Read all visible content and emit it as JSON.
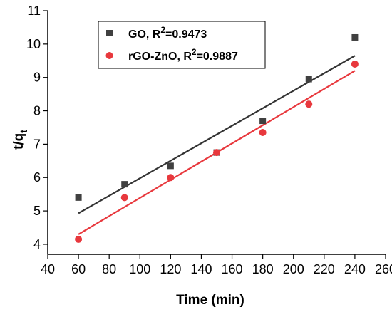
{
  "chart_data": {
    "type": "scatter",
    "xlabel": "Time (min)",
    "ylabel": "t/q",
    "ylabel_sub": "t",
    "xlim": [
      40,
      260
    ],
    "ylim": [
      3.7,
      11
    ],
    "xticks": [
      40,
      60,
      80,
      100,
      120,
      140,
      160,
      180,
      200,
      220,
      240,
      260
    ],
    "yticks": [
      4,
      5,
      6,
      7,
      8,
      9,
      10,
      11
    ],
    "legend_position": "top-left",
    "grid": false,
    "series": [
      {
        "name": "GO, R",
        "name_sup": "2",
        "name_suffix": "=0.9473",
        "marker": "square",
        "color": "#404040",
        "line_color": "#333333",
        "x": [
          60,
          90,
          120,
          150,
          180,
          210,
          240
        ],
        "y": [
          5.4,
          5.8,
          6.35,
          6.75,
          7.7,
          8.95,
          10.2
        ],
        "fit": {
          "x": [
            60,
            240
          ],
          "y": [
            4.93,
            9.65
          ]
        }
      },
      {
        "name": "rGO-ZnO, R",
        "name_sup": "2",
        "name_suffix": "=0.9887",
        "marker": "circle",
        "color": "#e8383d",
        "line_color": "#e8383d",
        "x": [
          60,
          90,
          120,
          150,
          180,
          210,
          240
        ],
        "y": [
          4.15,
          5.4,
          6.0,
          6.75,
          7.35,
          8.2,
          9.4
        ],
        "fit": {
          "x": [
            60,
            240
          ],
          "y": [
            4.3,
            9.2
          ]
        }
      }
    ]
  }
}
